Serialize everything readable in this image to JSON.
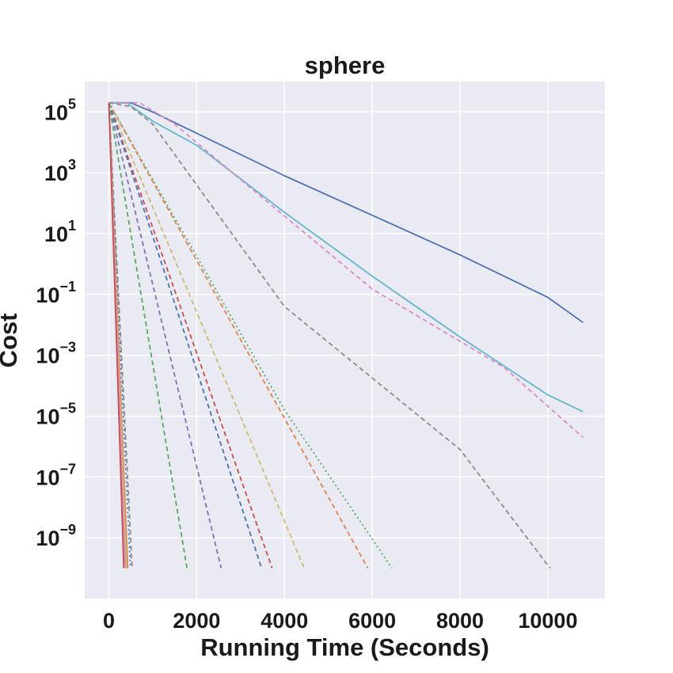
{
  "chart_data": {
    "type": "line",
    "title": "sphere",
    "xlabel": "Running Time (Seconds)",
    "ylabel": "Cost",
    "xlim": [
      -550,
      11300
    ],
    "ylim": [
      1e-11,
      1000000.0
    ],
    "yscale": "log",
    "grid": true,
    "legend": "none",
    "x_ticks": [
      {
        "value": 0,
        "label": "0"
      },
      {
        "value": 2000,
        "label": "2000"
      },
      {
        "value": 4000,
        "label": "4000"
      },
      {
        "value": 6000,
        "label": "6000"
      },
      {
        "value": 8000,
        "label": "8000"
      },
      {
        "value": 10000,
        "label": "10000"
      }
    ],
    "y_ticks": [
      {
        "value": 100000.0,
        "base": "10",
        "exp": "5"
      },
      {
        "value": 1000.0,
        "base": "10",
        "exp": "3"
      },
      {
        "value": 10,
        "base": "10",
        "exp": "1"
      },
      {
        "value": 0.1,
        "base": "10",
        "exp": "−1"
      },
      {
        "value": 0.001,
        "base": "10",
        "exp": "−3"
      },
      {
        "value": 1e-05,
        "base": "10",
        "exp": "−5"
      },
      {
        "value": 1e-07,
        "base": "10",
        "exp": "−7"
      },
      {
        "value": 1e-09,
        "base": "10",
        "exp": "−9"
      }
    ],
    "series": [
      {
        "color": "#4c72b0",
        "dash": "solid",
        "points": [
          [
            0,
            200000.0
          ],
          [
            500,
            200000.0
          ],
          [
            1000,
            100000.0
          ],
          [
            2000,
            20000.0
          ],
          [
            4000,
            800
          ],
          [
            6000,
            40
          ],
          [
            8000,
            2
          ],
          [
            10000,
            0.08
          ],
          [
            10800,
            0.012
          ]
        ]
      },
      {
        "color": "#64b5cd",
        "dash": "solid",
        "points": [
          [
            0,
            200000.0
          ],
          [
            400,
            200000.0
          ],
          [
            1000,
            50000.0
          ],
          [
            2000,
            8000
          ],
          [
            4000,
            50
          ],
          [
            6000,
            0.4
          ],
          [
            8000,
            0.004
          ],
          [
            10000,
            5e-05
          ],
          [
            10800,
            1.4e-05
          ]
        ]
      },
      {
        "color": "#da8bc3",
        "dash": "dashed",
        "points": [
          [
            0,
            200000.0
          ],
          [
            700,
            200000.0
          ],
          [
            1500,
            40000.0
          ],
          [
            3000,
            600
          ],
          [
            6000,
            0.15
          ],
          [
            9000,
            0.0004
          ],
          [
            10800,
            2e-06
          ]
        ]
      },
      {
        "color": "#8c8c8c",
        "dash": "dashed",
        "points": [
          [
            0,
            200000.0
          ],
          [
            500,
            150000.0
          ],
          [
            1000,
            40000.0
          ],
          [
            4000,
            0.04
          ],
          [
            8000,
            8e-07
          ],
          [
            10050,
            1e-10
          ]
        ]
      },
      {
        "color": "#55a868",
        "dash": "dotted",
        "points": [
          [
            0,
            200000.0
          ],
          [
            4000,
            1.6e-05
          ],
          [
            6450,
            1e-10
          ]
        ]
      },
      {
        "color": "#dd8452",
        "dash": "dashed",
        "points": [
          [
            0,
            200000.0
          ],
          [
            5900,
            1e-10
          ]
        ]
      },
      {
        "color": "#ccb974",
        "dash": "dashed",
        "points": [
          [
            0,
            200000.0
          ],
          [
            4450,
            1e-10
          ]
        ]
      },
      {
        "color": "#c44e52",
        "dash": "dashed",
        "points": [
          [
            0,
            200000.0
          ],
          [
            3720,
            1e-10
          ]
        ]
      },
      {
        "color": "#4c72b0",
        "dash": "dashed",
        "points": [
          [
            0,
            200000.0
          ],
          [
            3480,
            1e-10
          ]
        ]
      },
      {
        "color": "#8172b3",
        "dash": "dashed",
        "points": [
          [
            0,
            200000.0
          ],
          [
            2560,
            1e-10
          ]
        ]
      },
      {
        "color": "#55a868",
        "dash": "dashed",
        "points": [
          [
            0,
            200000.0
          ],
          [
            1780,
            1e-10
          ]
        ]
      },
      {
        "color": "#8c8c8c",
        "dash": "dashed",
        "points": [
          [
            0,
            200000.0
          ],
          [
            530,
            1e-10
          ]
        ]
      },
      {
        "color": "#4c72b0",
        "dash": "dotted",
        "points": [
          [
            0,
            200000.0
          ],
          [
            490,
            1e-10
          ]
        ]
      },
      {
        "color": "#dd8452",
        "dash": "solid",
        "points": [
          [
            0,
            200000.0
          ],
          [
            430,
            1e-10
          ]
        ]
      },
      {
        "color": "#ccb974",
        "dash": "solid",
        "points": [
          [
            0,
            200000.0
          ],
          [
            400,
            1e-10
          ]
        ]
      },
      {
        "color": "#da8bc3",
        "dash": "solid",
        "points": [
          [
            0,
            200000.0
          ],
          [
            370,
            1e-10
          ]
        ]
      },
      {
        "color": "#c44e52",
        "dash": "solid",
        "points": [
          [
            0,
            200000.0
          ],
          [
            340,
            1e-10
          ]
        ]
      }
    ]
  }
}
